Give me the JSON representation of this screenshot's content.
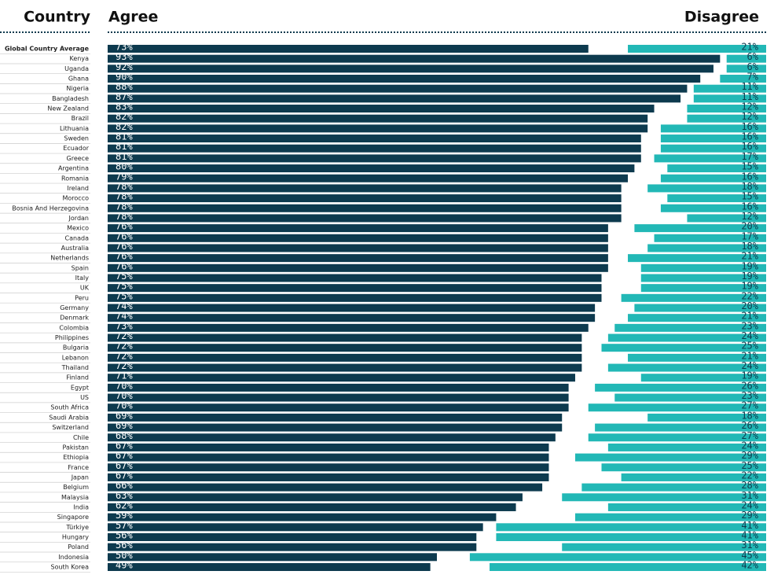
{
  "chart_data": {
    "type": "bar",
    "orientation": "horizontal",
    "stacking": "diverging",
    "category_label": "Country",
    "xlim": [
      0,
      100
    ],
    "categories": [
      "Global Country Average",
      "Kenya",
      "Uganda",
      "Ghana",
      "Nigeria",
      "Bangladesh",
      "New Zealand",
      "Brazil",
      "Lithuania",
      "Sweden",
      "Ecuador",
      "Greece",
      "Argentina",
      "Romania",
      "Ireland",
      "Morocco",
      "Bosnia And Herzegovina",
      "Jordan",
      "Mexico",
      "Canada",
      "Australia",
      "Netherlands",
      "Spain",
      "Italy",
      "UK",
      "Peru",
      "Germany",
      "Denmark",
      "Colombia",
      "Philippines",
      "Bulgaria",
      "Lebanon",
      "Thailand",
      "Finland",
      "Egypt",
      "US",
      "South Africa",
      "Saudi Arabia",
      "Switzerland",
      "Chile",
      "Pakistan",
      "Ethiopia",
      "France",
      "Japan",
      "Belgium",
      "Malaysia",
      "India",
      "Singapore",
      "Türkiye",
      "Hungary",
      "Poland",
      "Indonesia",
      "South Korea"
    ],
    "series": [
      {
        "name": "Agree",
        "color": "#0d3a4e",
        "values": [
          73,
          93,
          92,
          90,
          88,
          87,
          83,
          82,
          82,
          81,
          81,
          81,
          80,
          79,
          78,
          78,
          78,
          78,
          76,
          76,
          76,
          76,
          76,
          75,
          75,
          75,
          74,
          74,
          73,
          72,
          72,
          72,
          72,
          71,
          70,
          70,
          70,
          69,
          69,
          68,
          67,
          67,
          67,
          67,
          66,
          63,
          62,
          59,
          57,
          56,
          56,
          50,
          49
        ],
        "value_labels": [
          "73%",
          "93%",
          "92%",
          "90%",
          "88%",
          "87%",
          "83%",
          "82%",
          "82%",
          "81%",
          "81%",
          "81%",
          "80%",
          "79%",
          "78%",
          "78%",
          "78%",
          "78%",
          "76%",
          "76%",
          "76%",
          "76%",
          "76%",
          "75%",
          "75%",
          "75%",
          "74%",
          "74%",
          "73%",
          "72%",
          "72%",
          "72%",
          "72%",
          "71%",
          "70%",
          "70%",
          "70%",
          "69%",
          "69%",
          "68%",
          "67%",
          "67%",
          "67%",
          "67%",
          "66%",
          "63%",
          "62%",
          "59%",
          "57%",
          "56%",
          "56%",
          "50%",
          "49%"
        ]
      },
      {
        "name": "Disagree",
        "color": "#22b8b6",
        "values": [
          21,
          6,
          6,
          7,
          11,
          11,
          12,
          12,
          16,
          16,
          16,
          17,
          15,
          16,
          18,
          15,
          16,
          12,
          20,
          17,
          18,
          21,
          19,
          19,
          19,
          22,
          20,
          21,
          23,
          24,
          25,
          21,
          24,
          19,
          26,
          23,
          27,
          18,
          26,
          27,
          24,
          29,
          25,
          22,
          28,
          31,
          24,
          29,
          41,
          41,
          31,
          45,
          42
        ],
        "value_labels": [
          "21%",
          "6%",
          "6%",
          "7%",
          "11%",
          "11%",
          "12%",
          "12%",
          "16%",
          "16%",
          "16%",
          "17%",
          "15%",
          "16%",
          "18%",
          "15%",
          "16%",
          "12%",
          "20%",
          "17%",
          "18%",
          "21%",
          "19%",
          "19%",
          "19%",
          "22%",
          "20%",
          "21%",
          "23%",
          "24%",
          "25%",
          "21%",
          "24%",
          "19%",
          "26%",
          "23%",
          "27%",
          "18%",
          "26%",
          "27%",
          "24%",
          "29%",
          "25%",
          "22%",
          "28%",
          "31%",
          "24%",
          "29%",
          "41%",
          "41%",
          "31%",
          "45%",
          "42%"
        ]
      }
    ]
  }
}
